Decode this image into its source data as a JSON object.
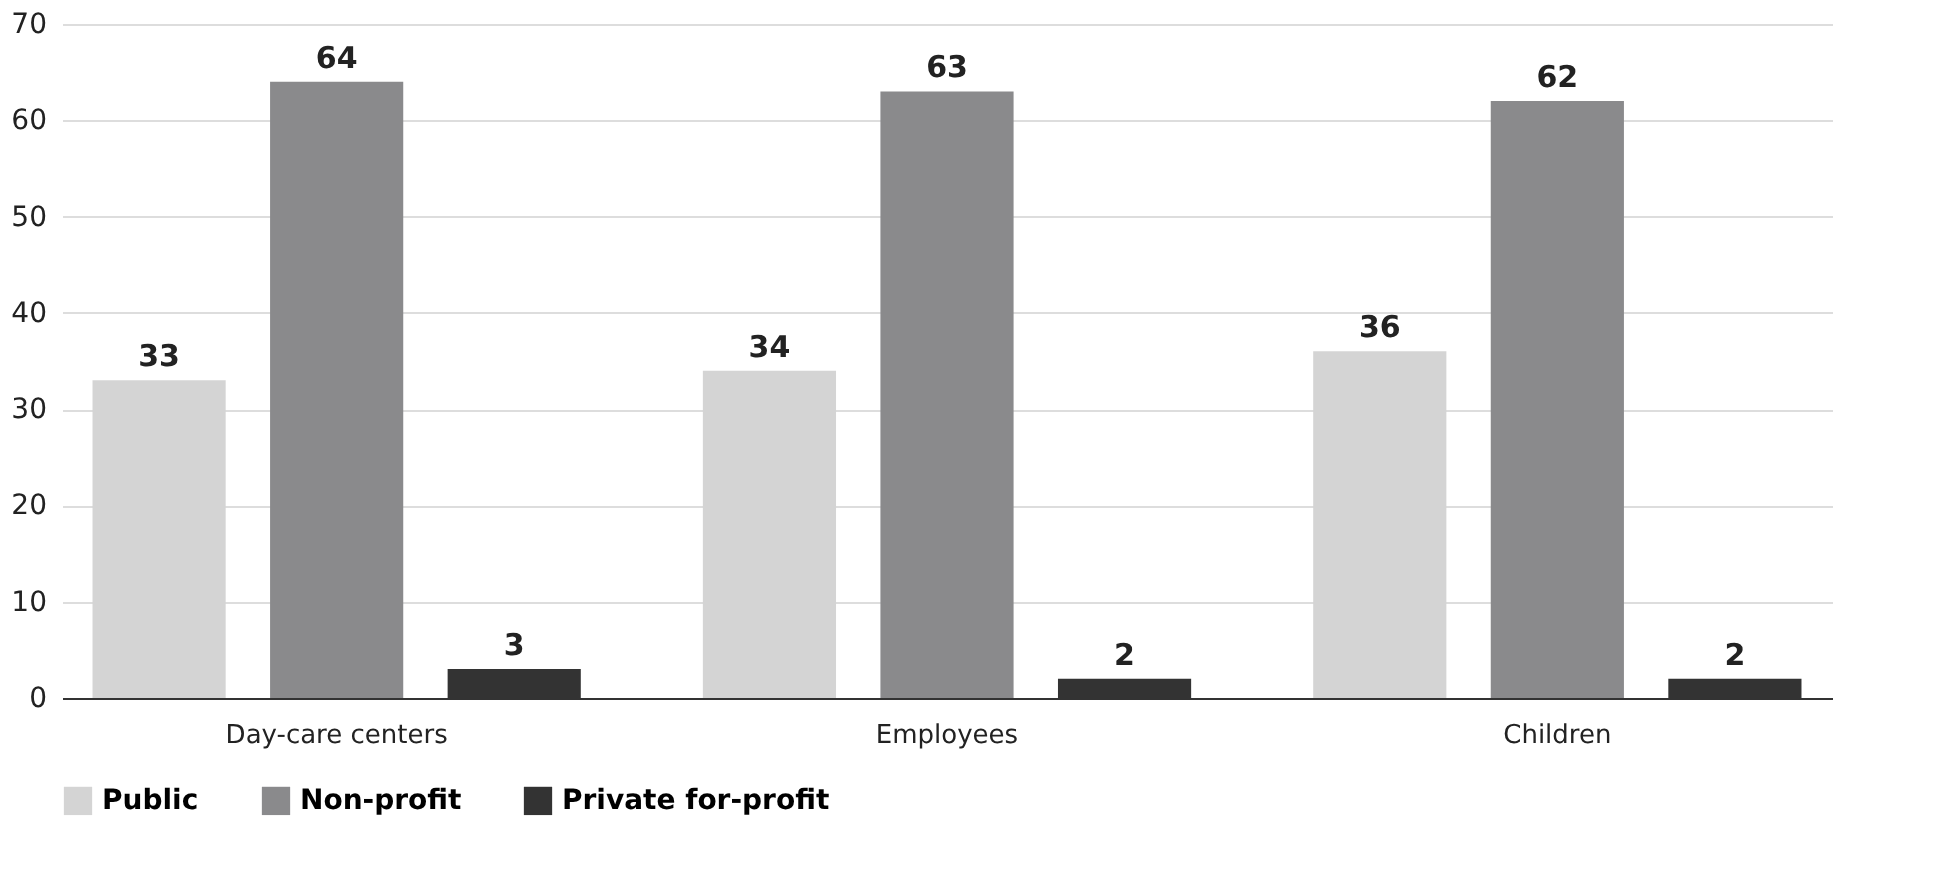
{
  "chart_data": {
    "type": "bar",
    "categories": [
      "Day-care centers",
      "Employees",
      "Children"
    ],
    "series": [
      {
        "name": "Public",
        "color": "#d4d4d4",
        "values": [
          33,
          34,
          36
        ]
      },
      {
        "name": "Non-profit",
        "color": "#8a8a8c",
        "values": [
          64,
          63,
          62
        ]
      },
      {
        "name": "Private for-profit",
        "color": "#333333",
        "values": [
          3,
          2,
          2
        ]
      }
    ],
    "ylim": [
      0,
      70
    ],
    "yticks": [
      0,
      10,
      20,
      30,
      40,
      50,
      60,
      70
    ],
    "grid": "y",
    "legend": "bottom",
    "data_labels": true
  }
}
